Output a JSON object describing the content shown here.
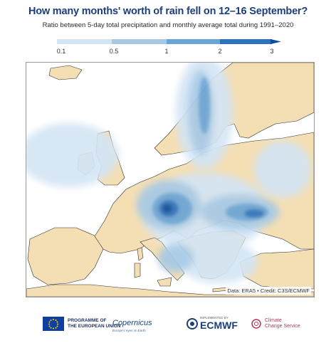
{
  "title": "How many months' worth of rain fell on 12–16 September?",
  "subtitle": "Ratio between 5-day total precipitation and monthly average total during 1991–2020",
  "legend": {
    "ticks": [
      "0.1",
      "0.5",
      "1",
      "2",
      "3"
    ],
    "colors": [
      "#d4e5f4",
      "#a6c9e6",
      "#6ba4d6",
      "#2f73bc",
      "#0b4d9c"
    ]
  },
  "map": {
    "land_color": "#f4dfb5",
    "sea_color": "#ffffff",
    "credit": "Data: ERA5 • Credit: C3S/ECMWF"
  },
  "footer": {
    "eu_line1": "PROGRAMME OF",
    "eu_line2": "THE EUROPEAN UNION",
    "copernicus": "Copernicus",
    "copernicus_sub": "Europe's eyes on Earth",
    "ecmwf_small": "IMPLEMENTED BY",
    "ecmwf": "ECMWF",
    "c3s_line1": "Climate",
    "c3s_line2": "Change Service"
  }
}
